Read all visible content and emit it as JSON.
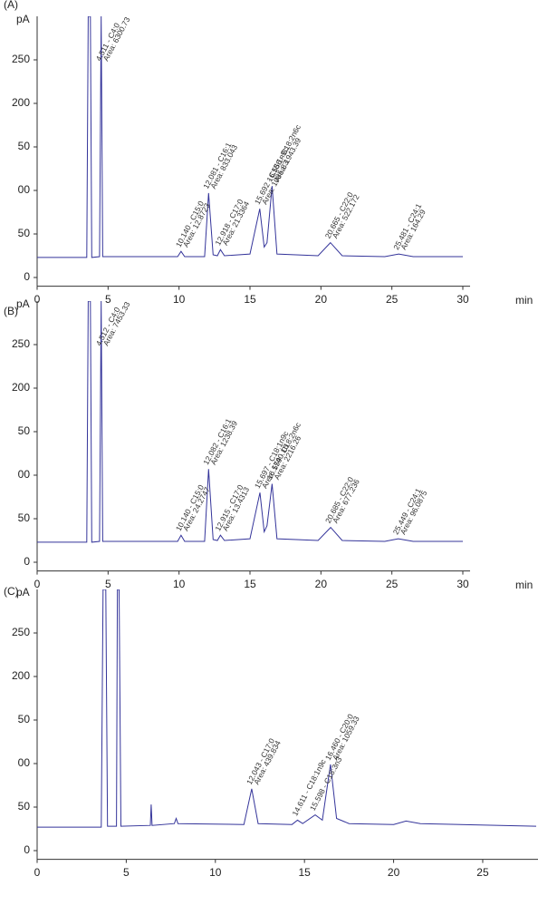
{
  "chart_data": [
    {
      "type": "line",
      "title": "(A)",
      "y_label": "pA",
      "x_label": "min",
      "color": "#34349a",
      "xlim": [
        0,
        30
      ],
      "xticks": [
        0,
        5,
        10,
        15,
        20,
        25,
        30
      ],
      "ylim": [
        -10,
        300
      ],
      "yticks": [
        0,
        50,
        {
          "value": 100,
          "label": "00"
        },
        {
          "value": 150,
          "label": "50"
        },
        200,
        250
      ],
      "x": [
        0,
        3.5,
        3.6,
        3.75,
        3.85,
        4.4,
        4.51,
        4.62,
        9.9,
        10.14,
        10.4,
        11.8,
        12.08,
        12.4,
        12.7,
        12.92,
        13.2,
        15.0,
        15.69,
        16.0,
        16.2,
        16.56,
        16.9,
        19.8,
        20.67,
        21.5,
        24.5,
        25.48,
        26.5,
        30
      ],
      "values": [
        23,
        23,
        300,
        300,
        23,
        24,
        300,
        24,
        24,
        30,
        24,
        24,
        97,
        26,
        25,
        32,
        25,
        27,
        79,
        35,
        40,
        105,
        27,
        25,
        40,
        25,
        24,
        27,
        24,
        24
      ],
      "annotations": [
        {
          "text": "4.511 - C4:0",
          "area": "Area: 6300.73",
          "x": 4.511
        },
        {
          "text": "10.140 - C15:0",
          "area": "Area: 12.8723",
          "x": 10.14
        },
        {
          "text": "12.081 - C16:1",
          "area": "Area: 833.043",
          "x": 12.081
        },
        {
          "text": "12.918 - C17:0",
          "area": "Area: 21.3364",
          "x": 12.918
        },
        {
          "text": "15.692 - C18:1n9c",
          "area": "Area: 1085.83",
          "x": 15.692
        },
        {
          "text": "16.556 - C18:2n6c",
          "area": "Area: 1943.39",
          "x": 16.556
        },
        {
          "text": "20.665 - C22:0",
          "area": "Area: 522.172",
          "x": 20.665
        },
        {
          "text": "25.481 - C24:1",
          "area": "Area: 164.29",
          "x": 25.481
        }
      ]
    },
    {
      "type": "line",
      "title": "(B)",
      "y_label": "pA",
      "x_label": "min",
      "color": "#34349a",
      "xlim": [
        0,
        30
      ],
      "xticks": [
        0,
        5,
        10,
        15,
        20,
        25,
        30
      ],
      "ylim": [
        -10,
        300
      ],
      "yticks": [
        0,
        50,
        {
          "value": 100,
          "label": "00"
        },
        {
          "value": 150,
          "label": "50"
        },
        200,
        250
      ],
      "x": [
        0,
        3.5,
        3.6,
        3.75,
        3.85,
        4.4,
        4.51,
        4.62,
        9.9,
        10.14,
        10.4,
        11.8,
        12.08,
        12.4,
        12.7,
        12.92,
        13.2,
        15.0,
        15.7,
        16.0,
        16.2,
        16.56,
        16.9,
        19.8,
        20.69,
        21.5,
        24.5,
        25.45,
        26.5,
        30
      ],
      "values": [
        23,
        23,
        300,
        300,
        23,
        24,
        300,
        24,
        24,
        31,
        24,
        24,
        107,
        26,
        25,
        31,
        25,
        27,
        80,
        35,
        42,
        90,
        27,
        25,
        40,
        25,
        24,
        27,
        24,
        24
      ],
      "annotations": [
        {
          "text": "4.512 - C4:0",
          "area": "Area: 7453.33",
          "x": 4.512
        },
        {
          "text": "10.140 - C15:0",
          "area": "Area: 24.2747",
          "x": 10.14
        },
        {
          "text": "12.082 - C16:1",
          "area": "Area: 1238.39",
          "x": 12.082
        },
        {
          "text": "12.915 - C17:0",
          "area": "Area: 13.4313",
          "x": 12.915
        },
        {
          "text": "15.697 - C18:1n9c",
          "area": "Area: 1740.16",
          "x": 15.697
        },
        {
          "text": "16.559 - C18:2n6c",
          "area": "Area: 2216.26",
          "x": 16.559
        },
        {
          "text": "20.685 - C22:0",
          "area": "Area: 677.236",
          "x": 20.685
        },
        {
          "text": "25.449 - C24:1",
          "area": "Area: 96.0875",
          "x": 25.449
        }
      ]
    },
    {
      "type": "line",
      "title": "(C)",
      "y_label": "pA",
      "color": "#34349a",
      "xlim": [
        0,
        28
      ],
      "xticks": [
        0,
        5,
        10,
        15,
        20,
        25
      ],
      "ylim": [
        -10,
        300
      ],
      "yticks": [
        0,
        50,
        {
          "value": 100,
          "label": "00"
        },
        {
          "value": 150,
          "label": "50"
        },
        200,
        250
      ],
      "x": [
        0,
        3.6,
        3.7,
        3.85,
        3.95,
        4.45,
        4.5,
        4.6,
        4.7,
        6.35,
        6.4,
        6.45,
        7.7,
        7.8,
        7.9,
        11.6,
        12.04,
        12.4,
        14.3,
        14.61,
        14.9,
        15.6,
        16.0,
        16.46,
        16.8,
        17.5,
        20,
        20.7,
        21.5,
        28
      ],
      "values": [
        27,
        27,
        300,
        300,
        28,
        28,
        300,
        300,
        28,
        29,
        53,
        29,
        31,
        37,
        31,
        30,
        71,
        31,
        30,
        35,
        31,
        41,
        35,
        99,
        37,
        31,
        30,
        34,
        31,
        28
      ],
      "annotations": [
        {
          "text": "12.043 - C17:0",
          "area": "Area: 439.834",
          "x": 12.043
        },
        {
          "text": "14.611 - C18:1n9c",
          "x": 14.611
        },
        {
          "text": "15.598 - C18:3n3",
          "x": 15.598
        },
        {
          "text": "16.460 - C20:0",
          "area": "Area: 1059.33",
          "x": 16.46
        }
      ]
    }
  ]
}
